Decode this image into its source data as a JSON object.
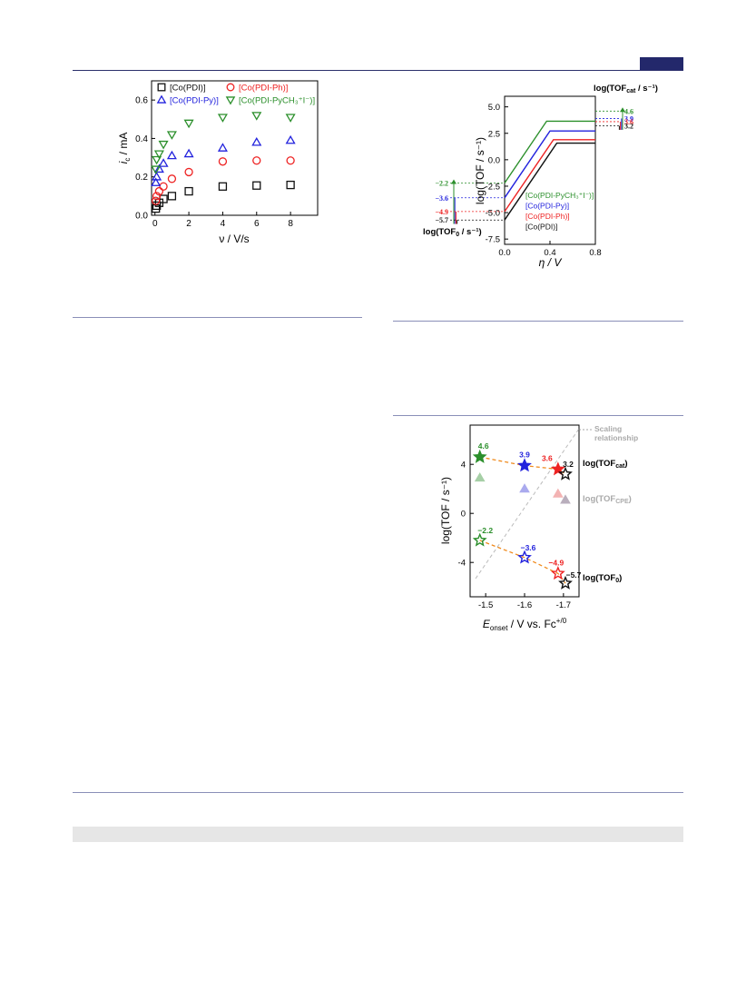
{
  "colors": {
    "green": "#2b8f2b",
    "blue": "#2222dd",
    "red": "#ee2222",
    "black": "#111111",
    "orange": "#f08a1c",
    "gray": "#aaaaaa",
    "header": "#23286b"
  },
  "chart_data": [
    {
      "type": "scatter",
      "title": "",
      "xlabel": "ν / V/s",
      "ylabel": "i_c / mA",
      "xlim": [
        -0.2,
        9.6
      ],
      "ylim": [
        0,
        0.7
      ],
      "xticks": [
        "0",
        "2",
        "4",
        "6",
        "8"
      ],
      "yticks": [
        "0.0",
        "0.2",
        "0.4",
        "0.6"
      ],
      "legend_position": "top",
      "series": [
        {
          "name": "[Co(PDI)]",
          "marker": "square",
          "color": "#111111",
          "x": [
            0.05,
            0.1,
            0.25,
            0.5,
            1,
            2,
            4,
            6,
            8
          ],
          "y": [
            0.035,
            0.05,
            0.065,
            0.085,
            0.1,
            0.125,
            0.15,
            0.155,
            0.158
          ]
        },
        {
          "name": "[Co(PDI-Ph)]",
          "marker": "circle",
          "color": "#ee2222",
          "x": [
            0.05,
            0.1,
            0.25,
            0.5,
            1,
            2,
            4,
            6,
            8
          ],
          "y": [
            0.075,
            0.1,
            0.125,
            0.15,
            0.19,
            0.225,
            0.28,
            0.285,
            0.285
          ]
        },
        {
          "name": "[Co(PDI-Py)]",
          "marker": "triangle-up",
          "color": "#2222dd",
          "x": [
            0.05,
            0.1,
            0.25,
            0.5,
            1,
            2,
            4,
            6,
            8
          ],
          "y": [
            0.17,
            0.2,
            0.24,
            0.27,
            0.31,
            0.32,
            0.35,
            0.38,
            0.39
          ]
        },
        {
          "name": "[Co(PDI-PyCH₃⁺I⁻)]",
          "marker": "triangle-down",
          "color": "#2b8f2b",
          "x": [
            0.05,
            0.1,
            0.25,
            0.5,
            1,
            2,
            4,
            6,
            8
          ],
          "y": [
            0.24,
            0.29,
            0.32,
            0.37,
            0.42,
            0.48,
            0.51,
            0.52,
            0.51
          ]
        }
      ]
    },
    {
      "type": "line",
      "title": "",
      "xlabel": "η / V",
      "ylabel": "log(TOF / s⁻¹)",
      "xlim": [
        0,
        0.8
      ],
      "ylim": [
        -8,
        6
      ],
      "xticks": [
        "0.0",
        "0.4",
        "0.8"
      ],
      "yticks": [
        "5.0",
        "2.5",
        "0.0",
        "-2.5",
        "-5.0",
        "-7.5"
      ],
      "annotation_top": "log(TOF",
      "annotation_top_sub": "cat",
      "annotation_top_tail": " / s⁻¹)",
      "annotation_bottom": "log(TOF",
      "annotation_bottom_sub": "0",
      "annotation_bottom_tail": " / s⁻¹)",
      "legend_position": "lower-right",
      "series": [
        {
          "name": "[Co(PDI-PyCH₃⁺I⁻)]",
          "color": "#2b8f2b",
          "tof0": -2.2,
          "tofcat": 4.6,
          "tof0_label": "−2.2",
          "tofcat_label": "4.6"
        },
        {
          "name": "[Co(PDI-Py)]",
          "color": "#2222dd",
          "tof0": -3.6,
          "tofcat": 3.9,
          "tof0_label": "−3.6",
          "tofcat_label": "3.9"
        },
        {
          "name": "[Co(PDI-Ph)]",
          "color": "#ee2222",
          "tof0": -4.9,
          "tofcat": 3.6,
          "tof0_label": "−4.9",
          "tofcat_label": "3.6"
        },
        {
          "name": "[Co(PDI)]",
          "color": "#111111",
          "tof0": -5.7,
          "tofcat": 3.2,
          "tof0_label": "−5.7",
          "tofcat_label": "3.2"
        }
      ]
    },
    {
      "type": "scatter",
      "title": "",
      "xlabel": "E",
      "xlabel_sub": "onset",
      "xlabel_tail": " / V vs. Fc",
      "xlabel_sup": "+/0",
      "ylabel": "log(TOF / s⁻¹)",
      "xlim": [
        -1.46,
        -1.74
      ],
      "ylim": [
        -6.8,
        7.2
      ],
      "xticks": [
        "-1.5",
        "-1.6",
        "-1.7"
      ],
      "yticks": [
        "4",
        "0",
        "-4"
      ],
      "scaling_label_line1": "Scaling",
      "scaling_label_line2": "relationship",
      "label_tofcat": "log(TOF",
      "label_tofcat_sub": "cat",
      "label_tofcpe": "log(TOF",
      "label_tofcpe_sub": "CPE",
      "label_tof0": "log(TOF",
      "label_tof0_sub": "0",
      "tofcat": {
        "x": [
          -1.485,
          -1.6,
          -1.686,
          -1.705
        ],
        "y": [
          4.6,
          3.9,
          3.6,
          3.2
        ],
        "labels": [
          "4.6",
          "3.9",
          "3.6",
          "3.2"
        ]
      },
      "tofcpe": {
        "x": [
          -1.485,
          -1.6,
          -1.686,
          -1.705
        ],
        "y": [
          2.9,
          2.0,
          1.6,
          1.1
        ]
      },
      "tof0": {
        "x": [
          -1.485,
          -1.6,
          -1.686,
          -1.705
        ],
        "y": [
          -2.2,
          -3.6,
          -4.9,
          -5.7
        ],
        "labels": [
          "−2.2",
          "−3.6",
          "−4.9",
          "−5.7"
        ]
      },
      "point_colors": [
        "#2b8f2b",
        "#2222dd",
        "#ee2222",
        "#111111"
      ],
      "cpe_colors": [
        "#a6cfa6",
        "#aaaaee",
        "#f3b3b3",
        "#b9aebc"
      ]
    }
  ]
}
